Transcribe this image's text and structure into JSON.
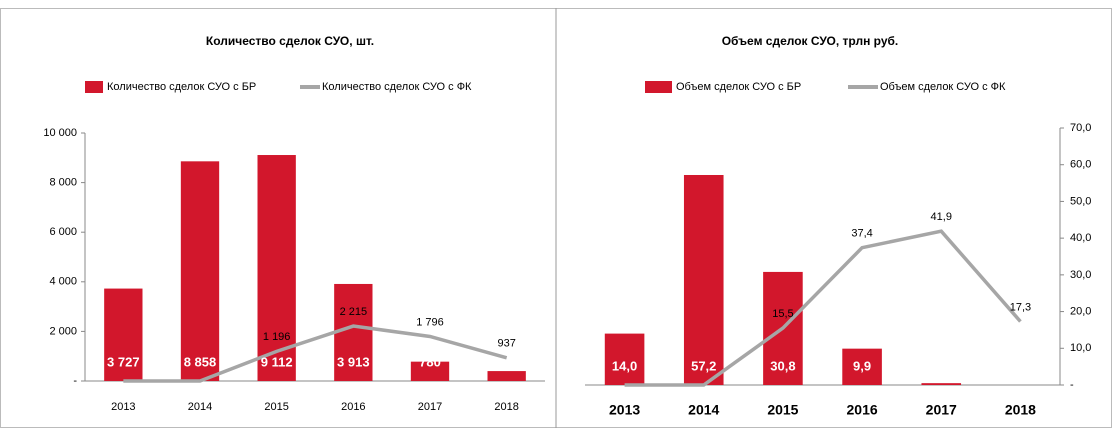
{
  "chart_data": [
    {
      "type": "bar_line",
      "title": "Количество сделок СУО, шт.",
      "categories": [
        "2013",
        "2014",
        "2015",
        "2016",
        "2017",
        "2018"
      ],
      "series": [
        {
          "name": "Количество сделок СУО  с БР",
          "kind": "bar",
          "color": "#d2172c",
          "values": [
            3727,
            8858,
            9112,
            3913,
            780,
            400
          ],
          "value_labels": [
            "3 727",
            "8 858",
            "9 112",
            "3 913",
            "780",
            null
          ]
        },
        {
          "name": "Количество сделок СУО  с ФК",
          "kind": "line",
          "color": "#a6a6a6",
          "values": [
            0,
            0,
            1196,
            2215,
            1796,
            937
          ],
          "value_labels": [
            null,
            null,
            "1 196",
            "2 215",
            "1 796",
            "937"
          ]
        }
      ],
      "ylim": [
        0,
        10000
      ],
      "yticks": [
        {
          "value": 0,
          "label": "-"
        },
        {
          "value": 2000,
          "label": "2 000"
        },
        {
          "value": 4000,
          "label": "4 000"
        },
        {
          "value": 6000,
          "label": "6 000"
        },
        {
          "value": 8000,
          "label": "8 000"
        },
        {
          "value": 10000,
          "label": "10 000"
        }
      ],
      "y_axis_side": "left"
    },
    {
      "type": "bar_line",
      "title": "Объем сделок СУО, трлн руб.",
      "categories": [
        "2013",
        "2014",
        "2015",
        "2016",
        "2017",
        "2018"
      ],
      "series": [
        {
          "name": "Объем сделок СУО с БР",
          "kind": "bar",
          "color": "#d2172c",
          "values": [
            14.0,
            57.2,
            30.8,
            9.9,
            0.5,
            null
          ],
          "value_labels": [
            "14,0",
            "57,2",
            "30,8",
            "9,9",
            null,
            null
          ]
        },
        {
          "name": "Объем сделок СУО с ФК",
          "kind": "line",
          "color": "#a6a6a6",
          "values": [
            0,
            0,
            15.5,
            37.4,
            41.9,
            17.3
          ],
          "value_labels": [
            null,
            null,
            "15,5",
            "37,4",
            "41,9",
            "17,3"
          ]
        }
      ],
      "ylim": [
        0,
        70
      ],
      "yticks": [
        {
          "value": 0,
          "label": "-"
        },
        {
          "value": 10,
          "label": "10,0"
        },
        {
          "value": 20,
          "label": "20,0"
        },
        {
          "value": 30,
          "label": "30,0"
        },
        {
          "value": 40,
          "label": "40,0"
        },
        {
          "value": 50,
          "label": "50,0"
        },
        {
          "value": 60,
          "label": "60,0"
        },
        {
          "value": 70,
          "label": "70,0"
        }
      ],
      "y_axis_side": "right"
    }
  ]
}
